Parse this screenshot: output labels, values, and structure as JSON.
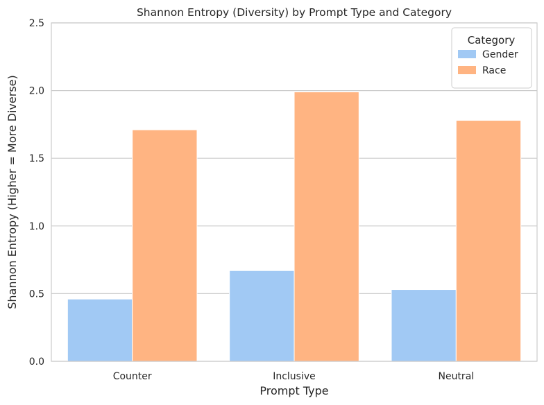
{
  "chart_data": {
    "type": "bar",
    "title": "Shannon Entropy (Diversity) by Prompt Type and Category",
    "xlabel": "Prompt Type",
    "ylabel": "Shannon Entropy (Higher = More Diverse)",
    "categories": [
      "Counter",
      "Inclusive",
      "Neutral"
    ],
    "series": [
      {
        "name": "Gender",
        "values": [
          0.46,
          0.67,
          0.53
        ],
        "color": "#a1c9f4"
      },
      {
        "name": "Race",
        "values": [
          1.71,
          1.99,
          1.78
        ],
        "color": "#ffb482"
      }
    ],
    "ylim": [
      0,
      2.5
    ],
    "yticks": [
      "0.0",
      "0.5",
      "1.0",
      "1.5",
      "2.0",
      "2.5"
    ],
    "grid": "horizontal",
    "legend_title": "Category",
    "legend_position": "top-right"
  }
}
